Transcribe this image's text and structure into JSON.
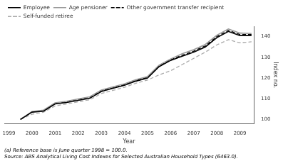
{
  "chart_data": {
    "type": "line",
    "xlabel": "Year",
    "ylabel": "Index no.",
    "x": [
      1999.5,
      2000.0,
      2000.5,
      2001.0,
      2001.5,
      2002.0,
      2002.5,
      2003.0,
      2003.5,
      2004.0,
      2004.5,
      2005.0,
      2005.5,
      2006.0,
      2006.5,
      2007.0,
      2007.5,
      2008.0,
      2008.5,
      2009.0,
      2009.5
    ],
    "xlim": [
      1998.8,
      2009.6
    ],
    "xticks": [
      1999,
      2000,
      2001,
      2002,
      2003,
      2004,
      2005,
      2006,
      2007,
      2008,
      2009
    ],
    "ylim": [
      98,
      145
    ],
    "yticks": [
      100,
      110,
      120,
      130,
      140
    ],
    "series": [
      {
        "name": "Employee",
        "color": "#000000",
        "line_style": "solid",
        "values": [
          100.0,
          103.5,
          104.0,
          107.5,
          108.2,
          109.2,
          110.2,
          113.5,
          115.0,
          116.5,
          118.5,
          120.0,
          125.5,
          128.5,
          130.5,
          132.5,
          135.0,
          139.5,
          142.5,
          140.5,
          140.5
        ]
      },
      {
        "name": "Age pensioner",
        "color": "#999999",
        "line_style": "solid",
        "values": [
          100.0,
          103.8,
          104.5,
          108.0,
          108.8,
          109.9,
          110.9,
          114.2,
          115.7,
          117.2,
          119.2,
          120.7,
          126.2,
          129.2,
          131.7,
          133.7,
          136.2,
          140.7,
          143.7,
          141.7,
          141.5
        ]
      },
      {
        "name": "Other government transfer recipient",
        "color": "#000000",
        "line_style": "dashed",
        "values": [
          100.0,
          103.6,
          104.2,
          107.8,
          108.6,
          109.7,
          110.7,
          113.8,
          115.2,
          116.8,
          118.8,
          120.3,
          125.8,
          128.8,
          131.0,
          133.0,
          135.5,
          140.0,
          143.0,
          141.0,
          141.0
        ]
      },
      {
        "name": "Self-funded retiree",
        "color": "#aaaaaa",
        "line_style": "dashed",
        "values": [
          100.0,
          102.5,
          103.5,
          106.5,
          107.5,
          108.5,
          109.5,
          112.5,
          114.0,
          115.5,
          117.5,
          119.0,
          121.5,
          123.5,
          126.5,
          129.5,
          132.5,
          136.0,
          138.5,
          137.0,
          137.5
        ]
      }
    ],
    "annotations": [
      "(a) Reference base is June quarter 1998 = 100.0.",
      "Source: ABS Analytical Living Cost Indexes for Selected Australian Household Types (6463.0)."
    ],
    "legend": "top",
    "grid": false
  }
}
